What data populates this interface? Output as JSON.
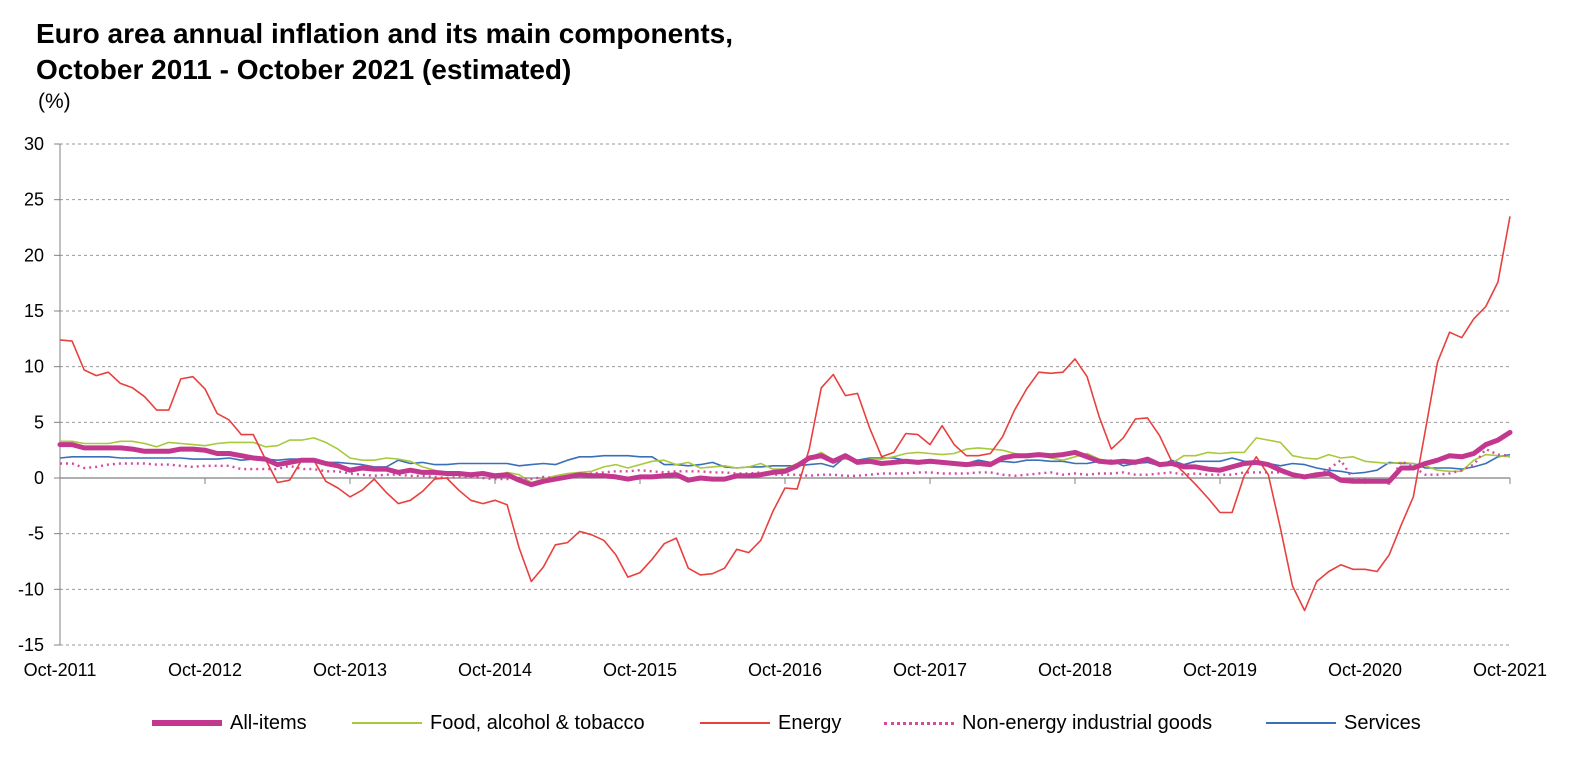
{
  "title_line1": "Euro area annual inflation and its main components,",
  "title_line2": "October 2011 - October 2021 (estimated)",
  "unit_label": "(%)",
  "chart_data": {
    "type": "line",
    "title": "Euro area annual inflation and its main components, October 2011 - October 2021 (estimated)",
    "ylabel": "(%)",
    "ylim": [
      -15,
      30
    ],
    "yticks": [
      30,
      25,
      20,
      15,
      10,
      5,
      0,
      -5,
      -10,
      -15
    ],
    "grid": true,
    "legend_position": "bottom",
    "x_start": "2011-10",
    "x_end": "2021-10",
    "x_tick_labels": [
      "Oct-2011",
      "Oct-2012",
      "Oct-2013",
      "Oct-2014",
      "Oct-2015",
      "Oct-2016",
      "Oct-2017",
      "Oct-2018",
      "Oct-2019",
      "Oct-2020",
      "Oct-2021"
    ],
    "series": [
      {
        "name": "All-items",
        "color": "#c2388f",
        "style": "thick",
        "values": [
          3.0,
          3.0,
          2.7,
          2.7,
          2.7,
          2.7,
          2.6,
          2.4,
          2.4,
          2.4,
          2.6,
          2.6,
          2.5,
          2.2,
          2.2,
          2.0,
          1.8,
          1.7,
          1.2,
          1.4,
          1.6,
          1.6,
          1.3,
          1.1,
          0.7,
          0.9,
          0.8,
          0.8,
          0.5,
          0.7,
          0.5,
          0.5,
          0.4,
          0.4,
          0.3,
          0.4,
          0.2,
          0.3,
          -0.2,
          -0.6,
          -0.3,
          -0.1,
          0.1,
          0.3,
          0.2,
          0.2,
          0.1,
          -0.1,
          0.1,
          0.1,
          0.2,
          0.3,
          -0.2,
          0.0,
          -0.1,
          -0.1,
          0.2,
          0.2,
          0.3,
          0.5,
          0.6,
          1.1,
          1.8,
          2.0,
          1.5,
          2.0,
          1.4,
          1.5,
          1.3,
          1.4,
          1.5,
          1.4,
          1.5,
          1.4,
          1.3,
          1.2,
          1.3,
          1.2,
          1.8,
          2.0,
          2.0,
          2.1,
          2.0,
          2.1,
          2.3,
          1.9,
          1.5,
          1.4,
          1.5,
          1.4,
          1.7,
          1.2,
          1.3,
          1.0,
          1.0,
          0.8,
          0.7,
          1.0,
          1.3,
          1.4,
          1.2,
          0.7,
          0.3,
          0.1,
          0.3,
          0.4,
          -0.2,
          -0.3,
          -0.3,
          -0.3,
          -0.3,
          0.9,
          0.9,
          1.3,
          1.6,
          2.0,
          1.9,
          2.2,
          3.0,
          3.4,
          4.1
        ]
      },
      {
        "name": "Food, alcohol & tobacco",
        "color": "#a8c93b",
        "style": "thin",
        "values": [
          3.3,
          3.3,
          3.1,
          3.1,
          3.1,
          3.3,
          3.3,
          3.1,
          2.8,
          3.2,
          3.1,
          3.0,
          2.9,
          3.1,
          3.2,
          3.2,
          3.2,
          2.8,
          2.9,
          3.4,
          3.4,
          3.6,
          3.2,
          2.6,
          1.8,
          1.6,
          1.6,
          1.8,
          1.7,
          1.5,
          1.0,
          0.7,
          0.3,
          0.3,
          0.4,
          0.4,
          0.2,
          0.5,
          0.3,
          -0.4,
          -0.1,
          0.2,
          0.4,
          0.5,
          0.6,
          1.0,
          1.2,
          0.9,
          1.2,
          1.5,
          1.6,
          1.2,
          1.4,
          0.9,
          1.0,
          1.1,
          0.9,
          1.0,
          1.3,
          0.8,
          0.8,
          1.3,
          1.8,
          2.3,
          1.6,
          1.7,
          1.5,
          1.7,
          1.7,
          1.9,
          2.2,
          2.3,
          2.2,
          2.1,
          2.2,
          2.6,
          2.7,
          2.6,
          2.5,
          2.2,
          2.0,
          2.0,
          1.8,
          1.6,
          1.9,
          2.2,
          1.7,
          1.5,
          1.6,
          1.6,
          1.8,
          1.2,
          1.3,
          2.0,
          2.0,
          2.3,
          2.2,
          2.3,
          2.3,
          3.6,
          3.4,
          3.2,
          2.0,
          1.8,
          1.7,
          2.1,
          1.8,
          1.9,
          1.5,
          1.4,
          1.3,
          1.4,
          1.3,
          1.1,
          0.7,
          0.6,
          0.6,
          1.6,
          2.1,
          2.0,
          1.9
        ]
      },
      {
        "name": "Energy",
        "color": "#e8403e",
        "style": "thin",
        "values": [
          12.4,
          12.3,
          9.7,
          9.2,
          9.5,
          8.5,
          8.1,
          7.3,
          6.1,
          6.1,
          8.9,
          9.1,
          8.0,
          5.8,
          5.2,
          3.9,
          3.9,
          1.7,
          -0.4,
          -0.2,
          1.6,
          1.6,
          -0.3,
          -0.9,
          -1.7,
          -1.1,
          -0.1,
          -1.3,
          -2.3,
          -2.0,
          -1.2,
          -0.1,
          0.0,
          -1.1,
          -2.0,
          -2.3,
          -2.0,
          -2.4,
          -6.3,
          -9.3,
          -8.0,
          -6.0,
          -5.8,
          -4.8,
          -5.1,
          -5.6,
          -6.9,
          -8.9,
          -8.5,
          -7.3,
          -5.9,
          -5.4,
          -8.1,
          -8.7,
          -8.6,
          -8.1,
          -6.4,
          -6.7,
          -5.6,
          -3.0,
          -0.9,
          -1.0,
          2.6,
          8.1,
          9.3,
          7.4,
          7.6,
          4.5,
          1.9,
          2.3,
          4.0,
          3.9,
          3.0,
          4.7,
          3.0,
          2.0,
          2.0,
          2.2,
          3.7,
          6.1,
          8.0,
          9.5,
          9.4,
          9.5,
          10.7,
          9.1,
          5.5,
          2.6,
          3.6,
          5.3,
          5.4,
          3.8,
          1.5,
          0.5,
          -0.6,
          -1.8,
          -3.1,
          -3.1,
          0.2,
          1.9,
          0.3,
          -4.5,
          -9.7,
          -11.9,
          -9.3,
          -8.4,
          -7.8,
          -8.2,
          -8.2,
          -8.4,
          -6.9,
          -4.2,
          -1.7,
          4.3,
          10.4,
          13.1,
          12.6,
          14.3,
          15.4,
          17.6,
          23.5
        ]
      },
      {
        "name": "Non-energy industrial goods",
        "color": "#d44aa1",
        "style": "dotted",
        "values": [
          1.3,
          1.3,
          0.9,
          1.0,
          1.2,
          1.3,
          1.3,
          1.3,
          1.2,
          1.2,
          1.1,
          1.0,
          1.1,
          1.1,
          1.1,
          0.8,
          0.8,
          0.8,
          0.8,
          1.1,
          0.8,
          0.8,
          0.6,
          0.6,
          0.4,
          0.3,
          0.2,
          0.3,
          0.3,
          0.2,
          0.2,
          0.1,
          0.0,
          0.1,
          0.1,
          0.0,
          -0.1,
          -0.1,
          0.0,
          -0.1,
          0.1,
          0.0,
          0.2,
          0.3,
          0.4,
          0.5,
          0.6,
          0.6,
          0.7,
          0.6,
          0.5,
          0.6,
          0.6,
          0.6,
          0.5,
          0.5,
          0.4,
          0.4,
          0.5,
          0.3,
          0.3,
          0.3,
          0.2,
          0.3,
          0.3,
          0.2,
          0.2,
          0.3,
          0.4,
          0.4,
          0.4,
          0.5,
          0.5,
          0.4,
          0.4,
          0.4,
          0.5,
          0.5,
          0.3,
          0.2,
          0.3,
          0.4,
          0.5,
          0.3,
          0.4,
          0.3,
          0.4,
          0.4,
          0.5,
          0.3,
          0.3,
          0.4,
          0.5,
          0.3,
          0.4,
          0.3,
          0.3,
          0.3,
          0.5,
          0.5,
          0.5,
          0.5,
          0.3,
          0.2,
          0.2,
          0.8,
          1.6,
          -0.1,
          -0.1,
          -0.3,
          -0.5,
          1.5,
          1.0,
          0.3,
          0.3,
          0.4,
          0.7,
          1.2,
          2.6,
          2.1,
          2.0
        ]
      },
      {
        "name": "Services",
        "color": "#3a6fba",
        "style": "thin",
        "values": [
          1.8,
          1.9,
          1.9,
          1.9,
          1.9,
          1.8,
          1.8,
          1.8,
          1.8,
          1.8,
          1.8,
          1.7,
          1.7,
          1.7,
          1.8,
          1.6,
          1.7,
          1.7,
          1.6,
          1.7,
          1.7,
          1.5,
          1.4,
          1.4,
          1.3,
          1.2,
          1.0,
          1.0,
          1.6,
          1.3,
          1.4,
          1.2,
          1.2,
          1.3,
          1.3,
          1.3,
          1.3,
          1.3,
          1.1,
          1.2,
          1.3,
          1.2,
          1.6,
          1.9,
          1.9,
          2.0,
          2.0,
          2.0,
          1.9,
          1.9,
          1.2,
          1.2,
          1.1,
          1.2,
          1.4,
          1.0,
          0.9,
          1.0,
          1.0,
          1.1,
          1.1,
          1.1,
          1.2,
          1.3,
          1.0,
          1.9,
          1.6,
          1.8,
          1.8,
          1.8,
          1.6,
          1.5,
          1.4,
          1.3,
          1.2,
          1.3,
          1.6,
          1.4,
          1.5,
          1.4,
          1.6,
          1.6,
          1.5,
          1.5,
          1.3,
          1.3,
          1.5,
          1.6,
          1.1,
          1.3,
          1.4,
          1.1,
          1.6,
          1.2,
          1.5,
          1.5,
          1.5,
          1.8,
          1.5,
          1.4,
          1.3,
          1.1,
          1.3,
          1.2,
          0.9,
          0.7,
          0.6,
          0.4,
          0.5,
          0.7,
          1.4,
          1.3,
          1.3,
          0.9,
          0.9,
          0.9,
          0.8,
          1.0,
          1.3,
          1.9,
          2.1
        ]
      }
    ]
  }
}
